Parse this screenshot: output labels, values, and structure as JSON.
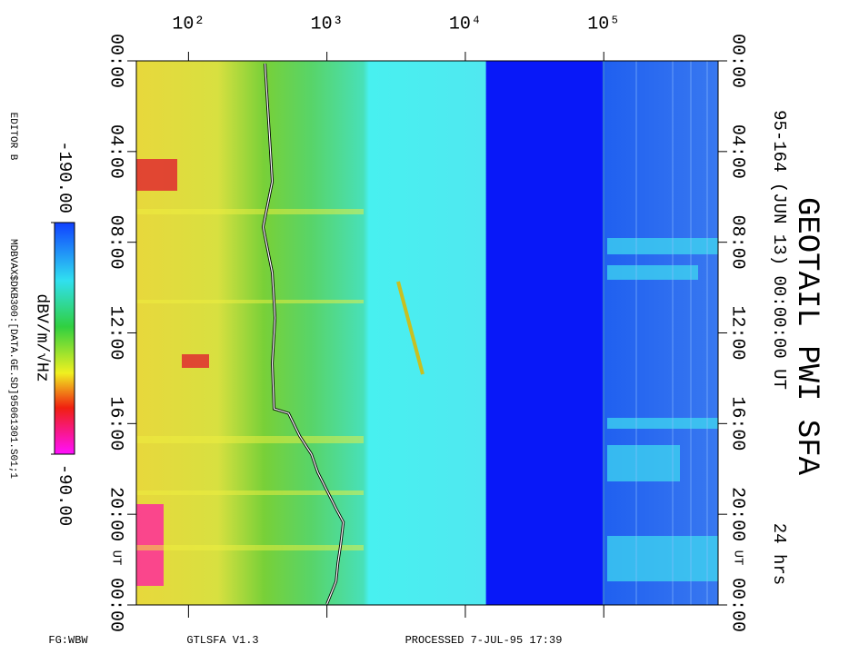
{
  "chart_data": {
    "type": "spectrogram",
    "title": "GEOTAIL PWI SFA",
    "subtitle": "95-164 (JUN 13) 00:00:00 UT",
    "duration": "24 hrs",
    "time_unit": "UT",
    "side_notes": [
      "EDITOR B",
      "MDBVAX$DKB300:[DATA.GE.SD]95061301.S01;1"
    ],
    "footer": [
      "FG:WBW",
      "GTLSFA  V1.3",
      "PROCESSED  7-JUL-95  17:39"
    ],
    "log_x": true,
    "xlim": [
      42,
      670000
    ],
    "xticks": [
      {
        "value": 100,
        "label": "10²"
      },
      {
        "value": 1000,
        "label": "10³"
      },
      {
        "value": 10000,
        "label": "10⁴"
      },
      {
        "value": 100000,
        "label": "10⁵"
      }
    ],
    "ylim": [
      0,
      24
    ],
    "yticks": [
      {
        "value": 0,
        "label": "00:00"
      },
      {
        "value": 4,
        "label": "04:00"
      },
      {
        "value": 8,
        "label": "08:00"
      },
      {
        "value": 12,
        "label": "12:00"
      },
      {
        "value": 16,
        "label": "16:00"
      },
      {
        "value": 20,
        "label": "20:00"
      },
      {
        "value": 24,
        "label": "00:00"
      }
    ],
    "trace": {
      "color": "#ffffff",
      "x": [
        357,
        385,
        403,
        346,
        403,
        422,
        403,
        415,
        529,
        636,
        773,
        859,
        1000,
        1164,
        1314,
        1256,
        1200,
        1164,
        1000
      ],
      "y": [
        0.12,
        3.33,
        5.33,
        7.33,
        9.34,
        11.34,
        13.34,
        15.35,
        15.55,
        16.55,
        17.35,
        18.15,
        18.95,
        19.75,
        20.35,
        21.35,
        22.16,
        22.96,
        23.96
      ]
    },
    "colorbar": {
      "label": "dBV/m/√Hz",
      "ticks": [
        {
          "value": -190,
          "label": "-190.00"
        },
        {
          "value": -90,
          "label": "-90.00"
        }
      ]
    }
  }
}
